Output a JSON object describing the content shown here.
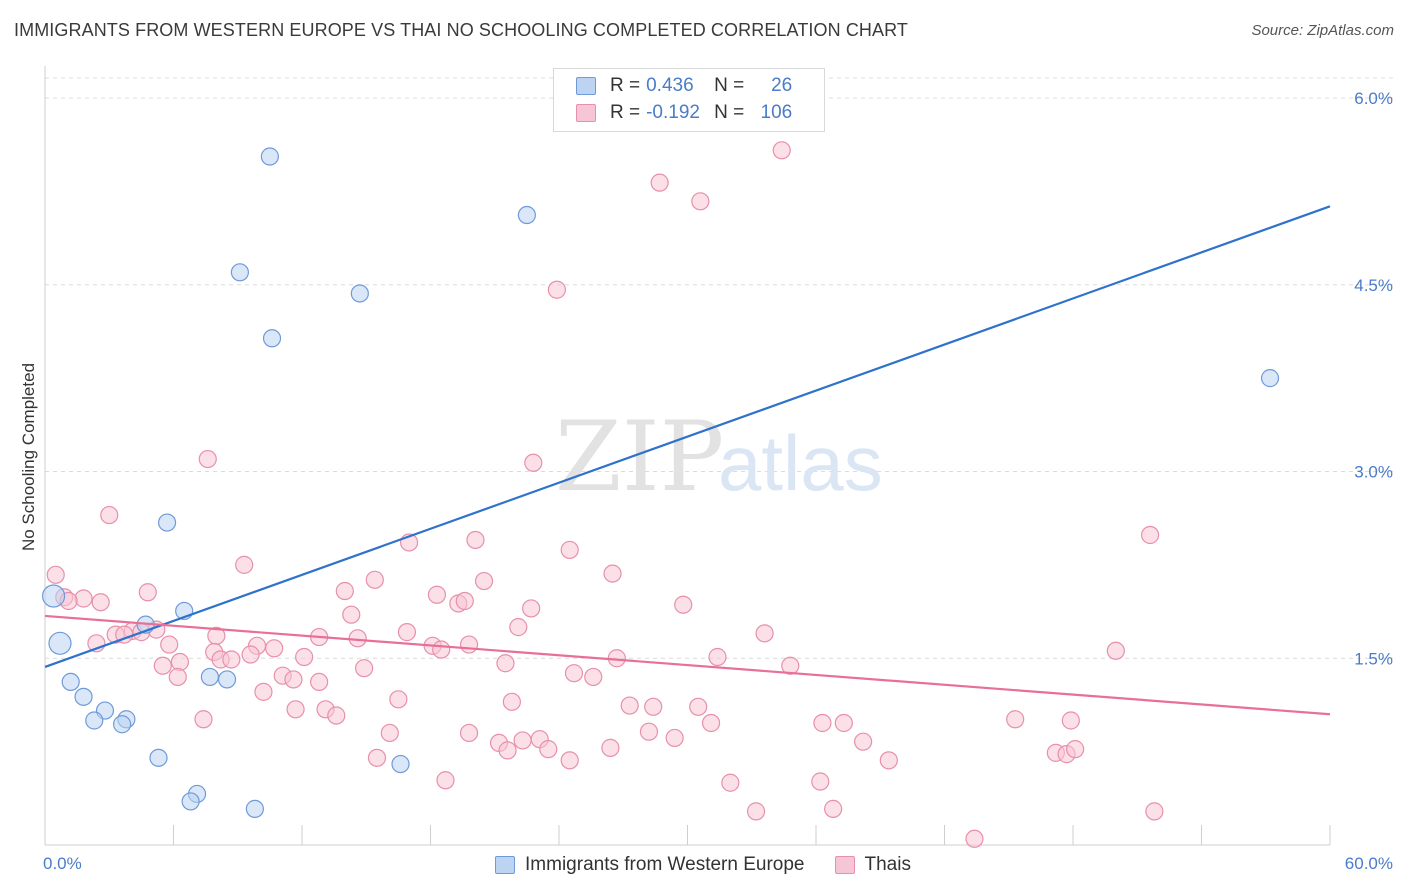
{
  "title": "IMMIGRANTS FROM WESTERN EUROPE VS THAI NO SCHOOLING COMPLETED CORRELATION CHART",
  "source": "Source: ZipAtlas.com",
  "watermark": {
    "zip": "ZIP",
    "atlas": "atlas"
  },
  "legend": {
    "r_label": "R =",
    "n_label": "N =",
    "rows": [
      {
        "r": "0.436",
        "n": "26"
      },
      {
        "r": "-0.192",
        "n": "106"
      }
    ]
  },
  "colors": {
    "blue_fill": "#bcd3f2",
    "blue_stroke": "#6f9ad8",
    "blue_line": "#2f72cc",
    "pink_fill": "#f7c6d6",
    "pink_stroke": "#e88fac",
    "pink_line": "#e86f98",
    "tick_label": "#4a7cc9",
    "grid": "#dcdcdc"
  },
  "chart_data": {
    "type": "scatter",
    "title": "IMMIGRANTS FROM WESTERN EUROPE VS THAI NO SCHOOLING COMPLETED CORRELATION CHART",
    "xlabel": "",
    "ylabel": "No Schooling Completed",
    "xlim": [
      0,
      60
    ],
    "ylim": [
      0,
      6.3
    ],
    "x_ticks": [
      0,
      6,
      12,
      18,
      24,
      30,
      36,
      42,
      48,
      54,
      60
    ],
    "x_tick_labels": {
      "0": "0.0%",
      "60": "60.0%"
    },
    "y_ticks": [
      1.5,
      3.0,
      4.5,
      6.0
    ],
    "y_tick_labels": [
      "1.5%",
      "3.0%",
      "4.5%",
      "6.0%"
    ],
    "series": [
      {
        "name": "Immigrants from Western Europe",
        "color": "blue",
        "r": 0.436,
        "n": 26,
        "trend": [
          [
            0,
            1.43
          ],
          [
            60,
            5.13
          ]
        ],
        "points": [
          [
            10.5,
            5.53
          ],
          [
            22.5,
            5.06
          ],
          [
            9.1,
            4.6
          ],
          [
            14.7,
            4.43
          ],
          [
            10.6,
            4.07
          ],
          [
            57.2,
            3.75
          ],
          [
            5.7,
            2.59
          ],
          [
            0.4,
            2.0
          ],
          [
            6.5,
            1.88
          ],
          [
            4.7,
            1.77
          ],
          [
            0.7,
            1.62
          ],
          [
            7.7,
            1.35
          ],
          [
            8.5,
            1.33
          ],
          [
            1.2,
            1.31
          ],
          [
            1.8,
            1.19
          ],
          [
            2.8,
            1.08
          ],
          [
            3.8,
            1.01
          ],
          [
            2.3,
            1.0
          ],
          [
            3.6,
            0.97
          ],
          [
            5.3,
            0.7
          ],
          [
            16.6,
            0.65
          ],
          [
            7.1,
            0.41
          ],
          [
            6.8,
            0.35
          ],
          [
            9.8,
            0.29
          ]
        ]
      },
      {
        "name": "Thais",
        "color": "pink",
        "r": -0.192,
        "n": 106,
        "trend": [
          [
            0,
            1.84
          ],
          [
            60,
            1.05
          ]
        ],
        "points": [
          [
            34.4,
            5.58
          ],
          [
            28.7,
            5.32
          ],
          [
            30.6,
            5.17
          ],
          [
            23.9,
            4.46
          ],
          [
            7.6,
            3.1
          ],
          [
            22.8,
            3.07
          ],
          [
            3.0,
            2.65
          ],
          [
            51.6,
            2.49
          ],
          [
            20.1,
            2.45
          ],
          [
            17.0,
            2.43
          ],
          [
            24.5,
            2.37
          ],
          [
            9.3,
            2.25
          ],
          [
            26.5,
            2.18
          ],
          [
            0.5,
            2.17
          ],
          [
            15.4,
            2.13
          ],
          [
            20.5,
            2.12
          ],
          [
            14.0,
            2.04
          ],
          [
            4.8,
            2.03
          ],
          [
            18.3,
            2.01
          ],
          [
            0.9,
            1.99
          ],
          [
            1.8,
            1.98
          ],
          [
            1.1,
            1.96
          ],
          [
            2.6,
            1.95
          ],
          [
            19.3,
            1.94
          ],
          [
            19.6,
            1.96
          ],
          [
            29.8,
            1.93
          ],
          [
            22.7,
            1.9
          ],
          [
            14.3,
            1.85
          ],
          [
            5.2,
            1.73
          ],
          [
            22.1,
            1.75
          ],
          [
            4.1,
            1.72
          ],
          [
            16.9,
            1.71
          ],
          [
            33.6,
            1.7
          ],
          [
            3.3,
            1.69
          ],
          [
            3.7,
            1.69
          ],
          [
            4.5,
            1.71
          ],
          [
            8.0,
            1.68
          ],
          [
            12.8,
            1.67
          ],
          [
            14.6,
            1.66
          ],
          [
            2.4,
            1.62
          ],
          [
            5.8,
            1.61
          ],
          [
            18.1,
            1.6
          ],
          [
            19.8,
            1.61
          ],
          [
            9.9,
            1.6
          ],
          [
            10.7,
            1.58
          ],
          [
            18.5,
            1.57
          ],
          [
            50.0,
            1.56
          ],
          [
            7.9,
            1.55
          ],
          [
            9.6,
            1.53
          ],
          [
            31.4,
            1.51
          ],
          [
            12.1,
            1.51
          ],
          [
            26.7,
            1.5
          ],
          [
            8.2,
            1.49
          ],
          [
            8.7,
            1.49
          ],
          [
            6.3,
            1.47
          ],
          [
            21.5,
            1.46
          ],
          [
            5.5,
            1.44
          ],
          [
            34.8,
            1.44
          ],
          [
            14.9,
            1.42
          ],
          [
            24.7,
            1.38
          ],
          [
            11.1,
            1.36
          ],
          [
            25.6,
            1.35
          ],
          [
            6.2,
            1.35
          ],
          [
            11.6,
            1.33
          ],
          [
            12.8,
            1.31
          ],
          [
            10.2,
            1.23
          ],
          [
            16.5,
            1.17
          ],
          [
            21.8,
            1.15
          ],
          [
            27.3,
            1.12
          ],
          [
            28.4,
            1.11
          ],
          [
            30.5,
            1.11
          ],
          [
            11.7,
            1.09
          ],
          [
            13.1,
            1.09
          ],
          [
            13.6,
            1.04
          ],
          [
            7.4,
            1.01
          ],
          [
            45.3,
            1.01
          ],
          [
            47.9,
            1.0
          ],
          [
            36.3,
            0.98
          ],
          [
            37.3,
            0.98
          ],
          [
            31.1,
            0.98
          ],
          [
            16.1,
            0.9
          ],
          [
            19.8,
            0.9
          ],
          [
            28.2,
            0.91
          ],
          [
            29.4,
            0.86
          ],
          [
            22.3,
            0.84
          ],
          [
            23.1,
            0.85
          ],
          [
            21.2,
            0.82
          ],
          [
            38.2,
            0.83
          ],
          [
            26.4,
            0.78
          ],
          [
            23.5,
            0.77
          ],
          [
            21.6,
            0.76
          ],
          [
            47.2,
            0.74
          ],
          [
            47.7,
            0.73
          ],
          [
            48.1,
            0.77
          ],
          [
            15.5,
            0.7
          ],
          [
            24.5,
            0.68
          ],
          [
            39.4,
            0.68
          ],
          [
            18.7,
            0.52
          ],
          [
            32.0,
            0.5
          ],
          [
            36.2,
            0.51
          ],
          [
            33.2,
            0.27
          ],
          [
            36.8,
            0.29
          ],
          [
            51.8,
            0.27
          ],
          [
            43.4,
            0.05
          ]
        ]
      }
    ]
  },
  "bottom_legend": [
    "Immigrants from Western Europe",
    "Thais"
  ]
}
